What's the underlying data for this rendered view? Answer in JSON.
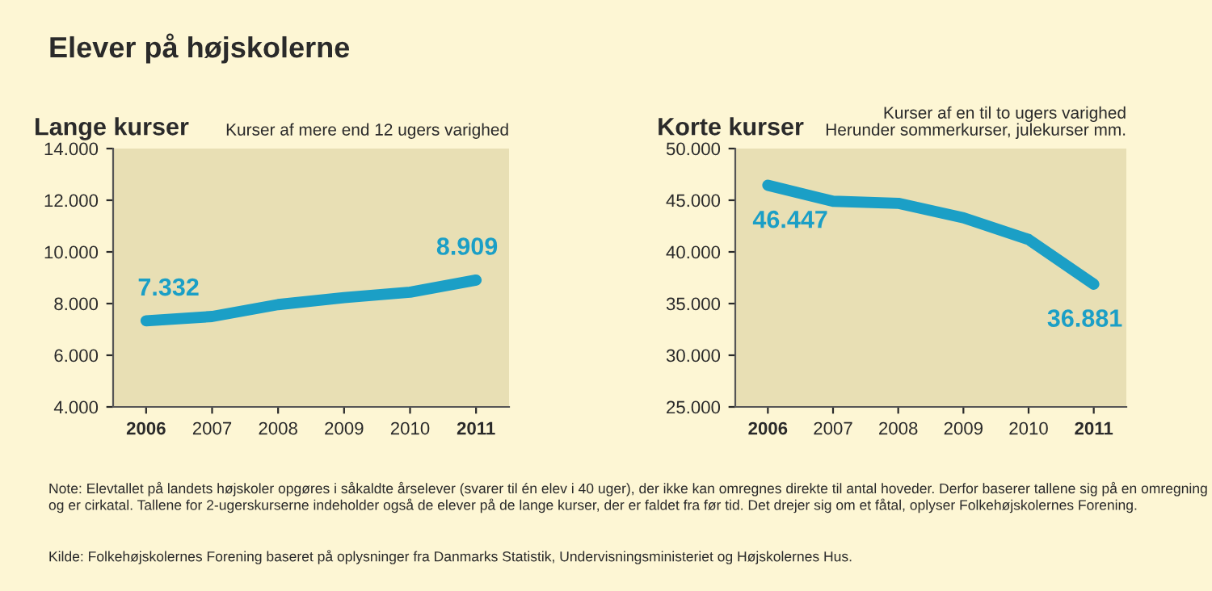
{
  "chart_data": [
    {
      "type": "line",
      "title": "Lange kurser",
      "subtitle": "Kurser af mere end 12 ugers varighed",
      "annotations": [
        "Elever på højskolerne"
      ],
      "categories": [
        "2006",
        "2007",
        "2008",
        "2009",
        "2010",
        "2011"
      ],
      "series": [
        {
          "color": "#1b9fc6",
          "values": [
            7332,
            7500,
            7960,
            8230,
            8440,
            8909
          ],
          "value_labels": [
            "7.332",
            null,
            null,
            null,
            null,
            "8.909"
          ]
        }
      ],
      "ylim": [
        4000,
        14000
      ],
      "yticks": [
        {
          "value": 4000,
          "label": "4.000"
        },
        {
          "value": 6000,
          "label": "6.000"
        },
        {
          "value": 8000,
          "label": "8.000"
        },
        {
          "value": 10000,
          "label": "10.000"
        },
        {
          "value": 12000,
          "label": "12.000"
        },
        {
          "value": 14000,
          "label": "14.000"
        }
      ],
      "grid": false,
      "legend": false,
      "marker": "none",
      "line_style": "solid"
    },
    {
      "type": "line",
      "title": "Korte kurser",
      "subtitle": "Kurser af en til to ugers varighed\nHerunder sommerkurser, julekurser mm.",
      "annotations": [
        "Note: Elevtallet på landets højskoler opgøres i såkaldte årselever (svarer til én elev i 40 uger), der ikke kan omregnes direkte til antal hoveder. Derfor baserer tallene sig på en omregning og er cirkatal. Tallene for 2-ugerskurserne indeholder også de elever på de lange kurser, der er faldet fra før tid. Det drejer sig om et fåtal, oplyser Folkehøjskolernes Forening.",
        "Kilde: Folkehøjskolernes Forening baseret på oplysninger fra Danmarks Statistik, Undervisningsministeriet og Højskolernes Hus."
      ],
      "categories": [
        "2006",
        "2007",
        "2008",
        "2009",
        "2010",
        "2011"
      ],
      "series": [
        {
          "color": "#1b9fc6",
          "values": [
            46447,
            44900,
            44700,
            43300,
            41200,
            36881
          ],
          "value_labels": [
            "46.447",
            null,
            null,
            null,
            null,
            "36.881"
          ]
        }
      ],
      "ylim": [
        25000,
        50000
      ],
      "yticks": [
        {
          "value": 25000,
          "label": "25.000"
        },
        {
          "value": 30000,
          "label": "30.000"
        },
        {
          "value": 35000,
          "label": "35.000"
        },
        {
          "value": 40000,
          "label": "40.000"
        },
        {
          "value": 45000,
          "label": "45.000"
        },
        {
          "value": 50000,
          "label": "50.000"
        }
      ],
      "grid": false,
      "legend": false,
      "marker": "none",
      "line_style": "solid"
    }
  ]
}
